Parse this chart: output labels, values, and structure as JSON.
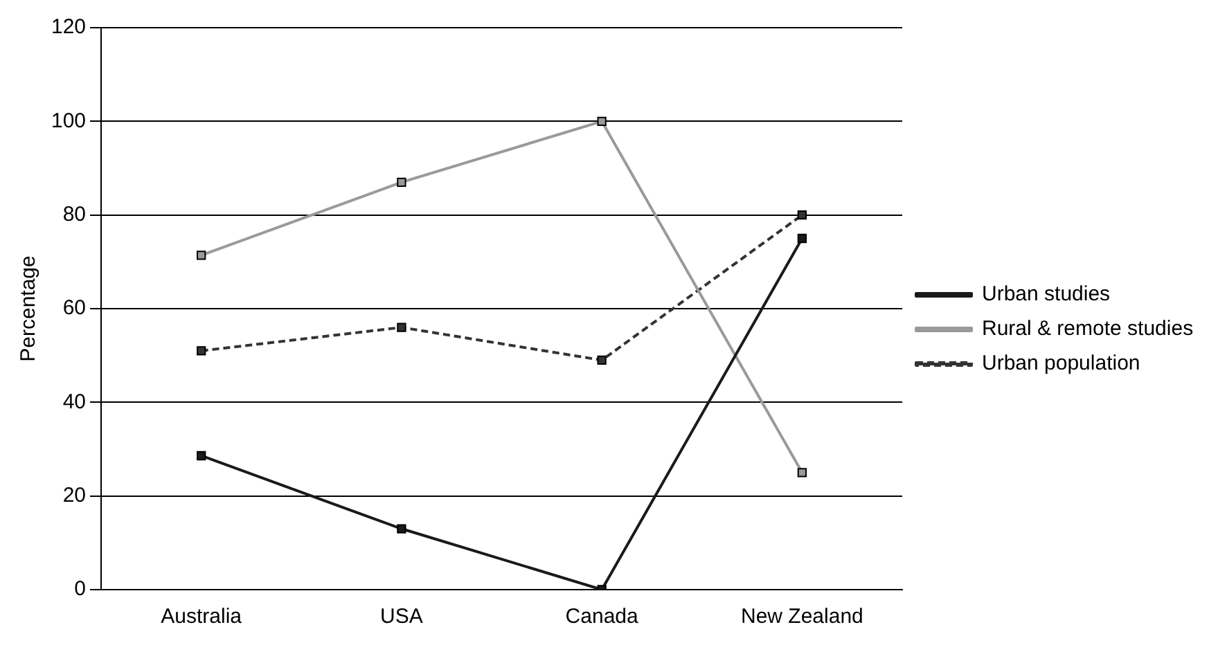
{
  "chart_data": {
    "type": "line",
    "ylabel": "Percentage",
    "categories": [
      "Australia",
      "USA",
      "Canada",
      "New Zealand"
    ],
    "series": [
      {
        "name": "Urban studies",
        "color": "#1a1a1a",
        "values": [
          28.6,
          13,
          0,
          75
        ],
        "line_style": "solid"
      },
      {
        "name": "Rural & remote studies",
        "color": "#9a9a9a",
        "values": [
          71.4,
          87,
          100,
          25
        ],
        "line_style": "solid"
      },
      {
        "name": "Urban population",
        "color": "#333333",
        "values": [
          51,
          56,
          49,
          80
        ],
        "line_style": "dashed"
      }
    ],
    "ylim": [
      0,
      120
    ],
    "yticks": [
      0,
      20,
      40,
      60,
      80,
      100,
      120
    ],
    "grid": "y",
    "legend": "right",
    "marker": "square"
  }
}
